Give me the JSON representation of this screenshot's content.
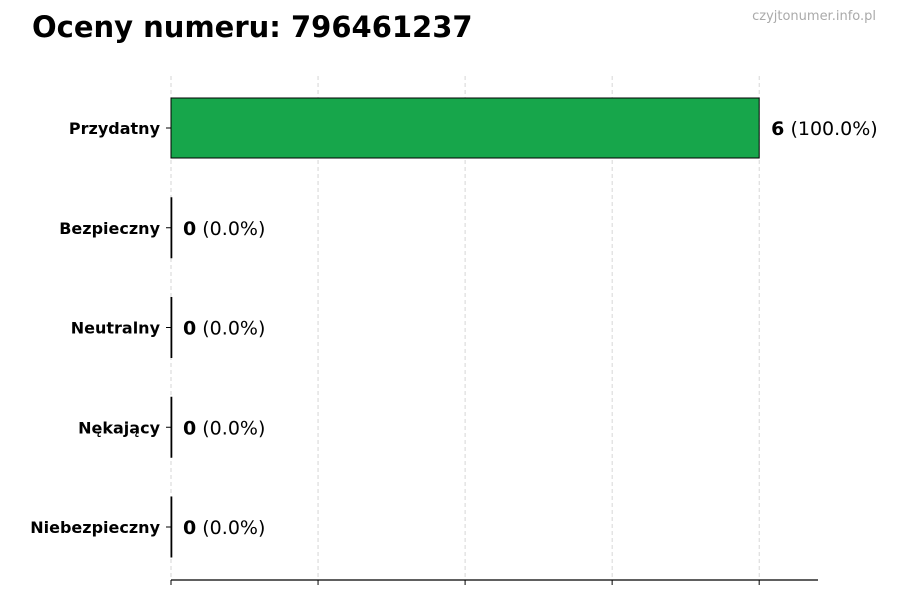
{
  "title": "Oceny numeru: 796461237",
  "watermark": "czyjtonumer.info.pl",
  "chart_data": {
    "type": "bar",
    "orientation": "horizontal",
    "title": "Oceny numeru: 796461237",
    "categories": [
      "Przydatny",
      "Bezpieczny",
      "Neutralny",
      "Nękający",
      "Niebezpieczny"
    ],
    "values": [
      6,
      0,
      0,
      0,
      0
    ],
    "percent_labels": [
      "(100.0%)",
      "(0.0%)",
      "(0.0%)",
      "(0.0%)",
      "(0.0%)"
    ],
    "xlim": [
      0,
      6.6
    ],
    "xticks": [
      0,
      1.5,
      3,
      4.5,
      6
    ],
    "xtick_labels_shown": false,
    "grid": "vertical dashed",
    "bar_color": "#17a64b",
    "xlabel": "",
    "ylabel": ""
  }
}
